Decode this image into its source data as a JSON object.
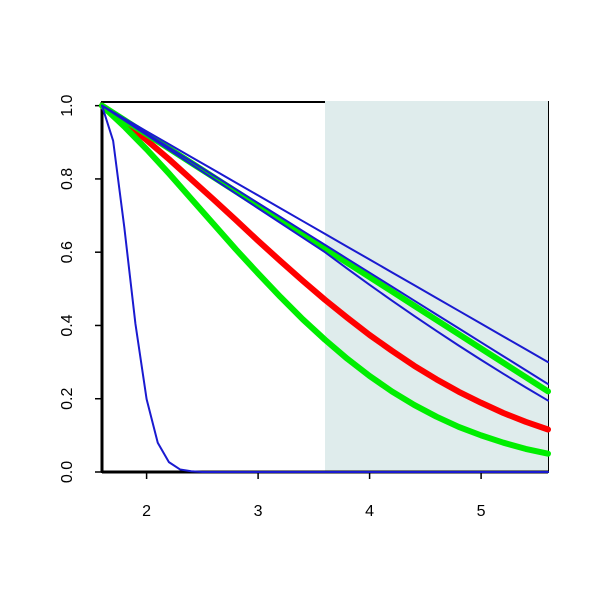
{
  "chart_data": {
    "type": "line",
    "xlim": [
      1.6,
      5.6
    ],
    "ylim": [
      0,
      1.01
    ],
    "xticks": [
      2,
      3,
      4,
      5
    ],
    "yticks": [
      {
        "value": 0,
        "label": "0.0"
      },
      {
        "value": 0.2,
        "label": "0.2"
      },
      {
        "value": 0.4,
        "label": "0.4"
      },
      {
        "value": 0.6,
        "label": "0.6"
      },
      {
        "value": 0.8,
        "label": "0.8"
      },
      {
        "value": 1,
        "label": "1.0"
      }
    ],
    "shaded_xrange": [
      3.6,
      5.6
    ],
    "shade_color": "#dfecec",
    "x": [
      1.6,
      1.8,
      2.0,
      2.2,
      2.4,
      2.6,
      2.8,
      3.0,
      3.2,
      3.4,
      3.6,
      3.8,
      4.0,
      4.2,
      4.4,
      4.6,
      4.8,
      5.0,
      5.2,
      5.4,
      5.6
    ],
    "series": [
      {
        "color": "#ff0000",
        "width": 6,
        "values": [
          1,
          0.955,
          0.906,
          0.854,
          0.799,
          0.744,
          0.688,
          0.631,
          0.576,
          0.522,
          0.47,
          0.421,
          0.374,
          0.331,
          0.29,
          0.253,
          0.219,
          0.189,
          0.161,
          0.137,
          0.116
        ]
      },
      {
        "color": "#00ee00",
        "width": 6,
        "values": [
          1,
          0.943,
          0.881,
          0.815,
          0.746,
          0.677,
          0.608,
          0.542,
          0.478,
          0.417,
          0.361,
          0.309,
          0.262,
          0.22,
          0.183,
          0.151,
          0.123,
          0.1,
          0.08,
          0.063,
          0.05
        ]
      },
      {
        "color": "#00ee00",
        "width": 6,
        "values": [
          1,
          0.961,
          0.922,
          0.883,
          0.844,
          0.805,
          0.766,
          0.727,
          0.688,
          0.649,
          0.61,
          0.571,
          0.532,
          0.493,
          0.454,
          0.415,
          0.376,
          0.337,
          0.298,
          0.259,
          0.22
        ]
      },
      {
        "color": "#1a1ad0",
        "width": 2,
        "values": [
          1,
          0.965,
          0.93,
          0.895,
          0.86,
          0.825,
          0.79,
          0.755,
          0.72,
          0.685,
          0.65,
          0.615,
          0.58,
          0.545,
          0.51,
          0.475,
          0.44,
          0.405,
          0.37,
          0.335,
          0.3
        ]
      },
      {
        "color": "#1a1ad0",
        "width": 2,
        "values": [
          1,
          0.962,
          0.924,
          0.886,
          0.848,
          0.81,
          0.772,
          0.734,
          0.696,
          0.658,
          0.62,
          0.582,
          0.544,
          0.506,
          0.468,
          0.43,
          0.392,
          0.354,
          0.316,
          0.278,
          0.24
        ]
      },
      {
        "color": "#1a1ad0",
        "width": 2,
        "values": [
          1,
          0.96,
          0.92,
          0.88,
          0.84,
          0.8,
          0.76,
          0.72,
          0.68,
          0.64,
          0.6,
          0.555,
          0.511,
          0.468,
          0.426,
          0.385,
          0.345,
          0.306,
          0.268,
          0.231,
          0.195
        ]
      },
      {
        "color": "#1a1ad0",
        "width": 2,
        "x": [
          1.6,
          1.7,
          1.8,
          1.9,
          2.0,
          2.1,
          2.2,
          2.3,
          2.4,
          2.5,
          2.6,
          5.6
        ],
        "values": [
          1,
          0.904,
          0.668,
          0.404,
          0.199,
          0.08,
          0.027,
          0.007,
          0.002,
          0,
          0,
          0
        ]
      }
    ]
  }
}
